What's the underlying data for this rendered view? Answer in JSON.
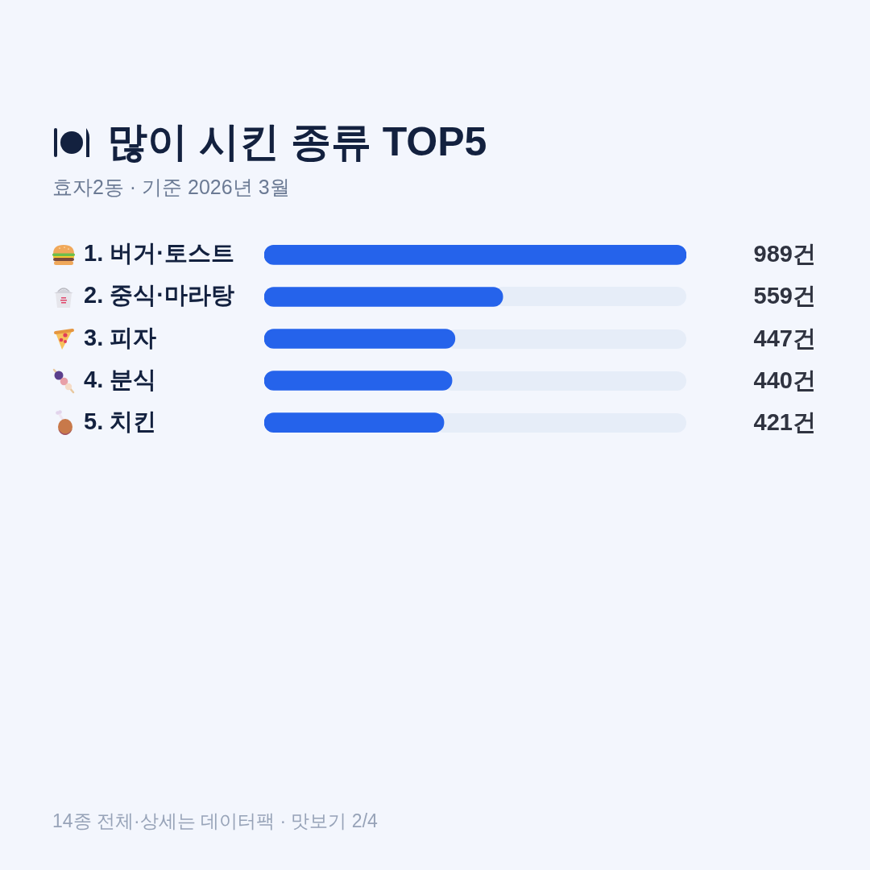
{
  "chart_data": {
    "type": "bar",
    "orientation": "horizontal",
    "title": "많이 시킨 종류 TOP5",
    "subtitle": "효자2동 · 기준 2026년 3월",
    "categories": [
      "1. 버거·토스트",
      "2. 중식·마라탕",
      "3. 피자",
      "4. 분식",
      "5. 치킨"
    ],
    "values": [
      989,
      559,
      447,
      440,
      421
    ],
    "value_labels": [
      "989건",
      "559건",
      "447건",
      "440건",
      "421건"
    ],
    "color": "#2563eb",
    "xlim": [
      0,
      989
    ],
    "tick_labels": "y",
    "grid": false,
    "legend": false,
    "annotations": [
      "14종 전체·상세는 데이터팩 · 맛보기 2/4"
    ]
  }
}
